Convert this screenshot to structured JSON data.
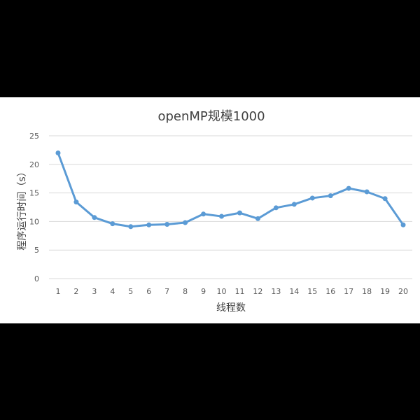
{
  "chart_data": {
    "type": "line",
    "title": "openMP规模1000",
    "xlabel": "线程数",
    "ylabel": "程序运行时间（s）",
    "categories": [
      "1",
      "2",
      "3",
      "4",
      "5",
      "6",
      "7",
      "8",
      "9",
      "10",
      "11",
      "12",
      "13",
      "14",
      "15",
      "16",
      "17",
      "18",
      "19",
      "20"
    ],
    "series": [
      {
        "values": [
          22.0,
          13.4,
          10.7,
          9.6,
          9.1,
          9.4,
          9.5,
          9.8,
          11.3,
          10.9,
          11.5,
          10.5,
          12.4,
          13.0,
          14.1,
          14.5,
          15.8,
          15.2,
          14.0,
          9.4
        ]
      }
    ],
    "yticks": [
      "0",
      "5",
      "10",
      "15",
      "20",
      "25"
    ],
    "ylim": [
      0,
      25
    ],
    "grid": true,
    "legend": "none",
    "line_color": "#5B9BD5",
    "grid_color": "#D9D9D9",
    "background_color": "#FFFFFF"
  }
}
